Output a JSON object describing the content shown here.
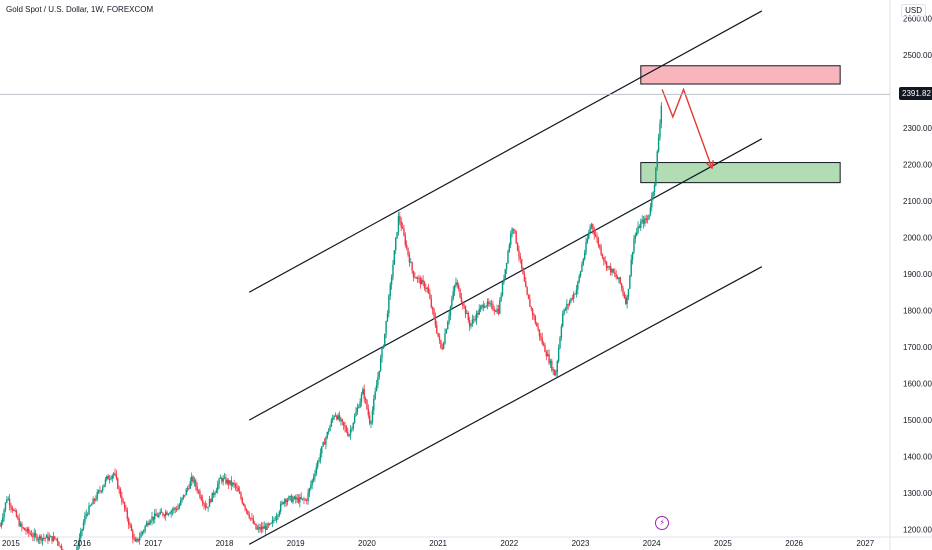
{
  "header": {
    "title": "Gold Spot / U.S. Dollar, 1W, FOREXCOM",
    "currency": "USD",
    "last_price_label": "2391.82"
  },
  "event_icon": "lightning-icon",
  "colors": {
    "bull": "#089981",
    "bear": "#f23645",
    "resistance_fill": "#f7a9b0",
    "support_fill": "#a5d6a7",
    "arrow": "#e53935"
  },
  "chart_data": {
    "type": "candlestick",
    "x_ticks": [
      "2015",
      "2016",
      "2017",
      "2018",
      "2019",
      "2020",
      "2021",
      "2022",
      "2023",
      "2024",
      "2025",
      "2026",
      "2027"
    ],
    "y_ticks": [
      "2600.00",
      "2500.00",
      "2400.00",
      "2300.00",
      "2200.00",
      "2100.00",
      "2000.00",
      "1900.00",
      "1800.00",
      "1700.00",
      "1600.00",
      "1500.00",
      "1400.00",
      "1300.00",
      "1200.00"
    ],
    "ylim": [
      1180,
      2650
    ],
    "xlim": [
      2015.0,
      2027.5
    ],
    "last_price": 2391.82,
    "price_path": [
      [
        2015.0,
        1210
      ],
      [
        2015.1,
        1290
      ],
      [
        2015.3,
        1205
      ],
      [
        2015.5,
        1180
      ],
      [
        2015.8,
        1175
      ],
      [
        2016.0,
        1080
      ],
      [
        2016.2,
        1240
      ],
      [
        2016.5,
        1340
      ],
      [
        2016.6,
        1355
      ],
      [
        2016.9,
        1160
      ],
      [
        2017.1,
        1230
      ],
      [
        2017.5,
        1260
      ],
      [
        2017.7,
        1340
      ],
      [
        2017.9,
        1260
      ],
      [
        2018.1,
        1340
      ],
      [
        2018.3,
        1320
      ],
      [
        2018.6,
        1200
      ],
      [
        2018.8,
        1210
      ],
      [
        2019.0,
        1285
      ],
      [
        2019.3,
        1280
      ],
      [
        2019.5,
        1410
      ],
      [
        2019.7,
        1520
      ],
      [
        2019.9,
        1460
      ],
      [
        2020.1,
        1580
      ],
      [
        2020.2,
        1490
      ],
      [
        2020.4,
        1730
      ],
      [
        2020.6,
        2060
      ],
      [
        2020.8,
        1900
      ],
      [
        2021.0,
        1860
      ],
      [
        2021.2,
        1690
      ],
      [
        2021.4,
        1880
      ],
      [
        2021.6,
        1760
      ],
      [
        2021.8,
        1820
      ],
      [
        2022.0,
        1800
      ],
      [
        2022.2,
        2040
      ],
      [
        2022.4,
        1840
      ],
      [
        2022.6,
        1720
      ],
      [
        2022.8,
        1620
      ],
      [
        2022.9,
        1790
      ],
      [
        2023.1,
        1860
      ],
      [
        2023.3,
        2040
      ],
      [
        2023.5,
        1930
      ],
      [
        2023.7,
        1880
      ],
      [
        2023.8,
        1820
      ],
      [
        2023.9,
        1995
      ],
      [
        2024.0,
        2040
      ],
      [
        2024.1,
        2050
      ],
      [
        2024.2,
        2160
      ],
      [
        2024.3,
        2390
      ]
    ],
    "channel": {
      "upper": [
        [
          2018.5,
          1850
        ],
        [
          2025.7,
          2620
        ]
      ],
      "middle": [
        [
          2018.5,
          1500
        ],
        [
          2025.7,
          2270
        ]
      ],
      "lower": [
        [
          2018.5,
          1160
        ],
        [
          2025.7,
          1920
        ]
      ]
    },
    "zones": [
      {
        "kind": "resistance",
        "x": [
          2024.0,
          2026.8
        ],
        "y": [
          2420,
          2470
        ]
      },
      {
        "kind": "support",
        "x": [
          2024.0,
          2026.8
        ],
        "y": [
          2150,
          2205
        ]
      }
    ],
    "projection": [
      [
        2024.3,
        2405
      ],
      [
        2024.45,
        2330
      ],
      [
        2024.6,
        2405
      ],
      [
        2025.0,
        2190
      ]
    ]
  }
}
